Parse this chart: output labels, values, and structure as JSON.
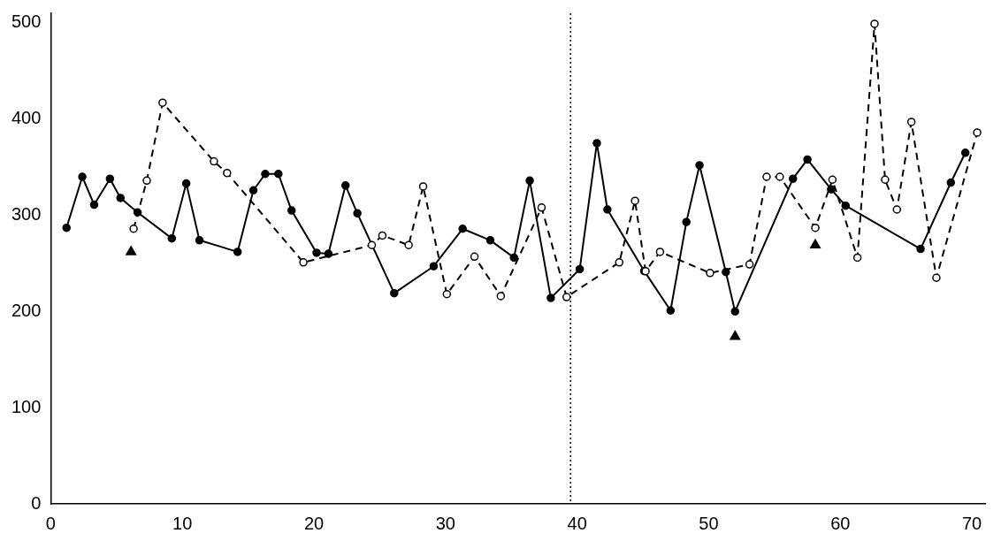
{
  "chart_data": {
    "type": "line",
    "xlim": [
      0,
      71
    ],
    "ylim": [
      0,
      510
    ],
    "xticks": [
      0,
      10,
      20,
      30,
      40,
      50,
      60,
      70
    ],
    "yticks": [
      0,
      100,
      200,
      300,
      400,
      500
    ],
    "grid": false,
    "legend": false,
    "series": [
      {
        "color": "#000000",
        "marker": "circle",
        "line_style": "solid",
        "x": [
          1.2,
          2.4,
          3.3,
          4.5,
          5.3,
          6.6,
          9.2,
          10.3,
          11.3,
          14.2,
          15.4,
          16.3,
          17.3,
          18.3,
          20.2,
          21.1,
          22.4,
          23.3,
          26.1,
          29.1,
          31.3,
          33.4,
          35.2,
          36.4,
          38.0,
          40.2,
          41.5,
          42.3,
          45.1,
          47.1,
          48.3,
          49.3,
          51.3,
          52.0,
          56.4,
          57.5,
          59.3,
          60.4,
          66.1,
          68.4,
          69.5
        ],
        "values": [
          287,
          340,
          311,
          338,
          318,
          303,
          276,
          333,
          274,
          262,
          326,
          343,
          343,
          305,
          261,
          260,
          331,
          302,
          219,
          247,
          286,
          274,
          256,
          336,
          214,
          244,
          375,
          306,
          242,
          201,
          293,
          352,
          241,
          200,
          338,
          358,
          327,
          310,
          265,
          334,
          365
        ]
      },
      {
        "color": "#000000",
        "marker": "circle",
        "line_style": "dashed",
        "x": [
          6.3,
          7.3,
          8.5,
          12.4,
          13.4,
          19.2,
          24.4,
          25.2,
          27.2,
          28.3,
          30.1,
          32.2,
          34.2,
          37.3,
          39.2,
          43.2,
          44.4,
          45.2,
          46.3,
          50.1,
          53.1,
          54.4,
          55.4,
          58.1,
          59.4,
          61.3,
          62.6,
          63.4,
          64.3,
          65.4,
          67.3,
          70.4
        ],
        "values": [
          286,
          336,
          417,
          356,
          344,
          251,
          269,
          279,
          269,
          330,
          218,
          257,
          216,
          308,
          215,
          251,
          315,
          242,
          262,
          240,
          249,
          340,
          340,
          287,
          337,
          256,
          499,
          337,
          306,
          397,
          235,
          386
        ]
      },
      {
        "type": "scatter",
        "color": "#000000",
        "marker": "triangle",
        "x": [
          6.1,
          52.0,
          58.1
        ],
        "values": [
          262,
          174,
          269
        ]
      }
    ],
    "ref_lines": [
      {
        "axis": "x",
        "value": 39.5,
        "color": "#000000",
        "line_style": "dotted"
      }
    ]
  }
}
